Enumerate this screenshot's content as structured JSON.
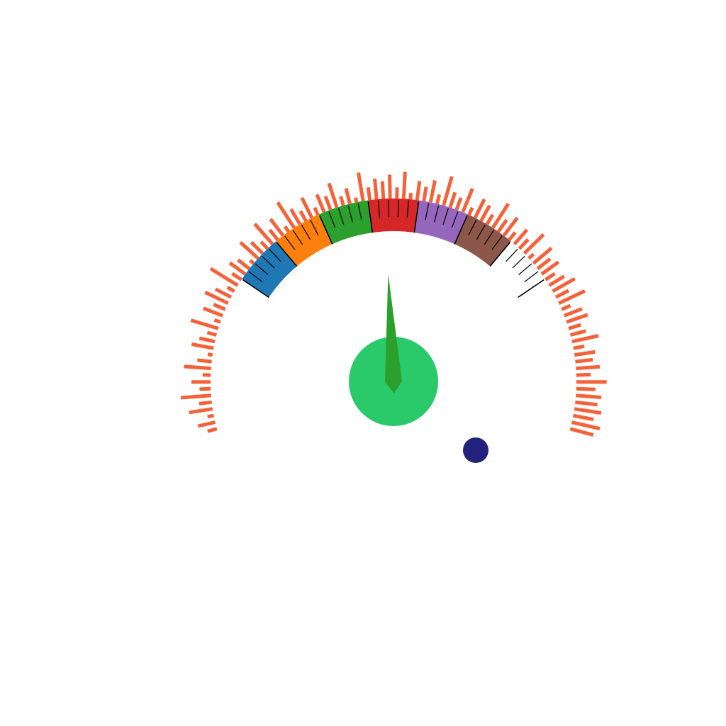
{
  "chart_data": {
    "type": "gauge",
    "title": "",
    "needle_value": 0.443,
    "bands": [
      {
        "from": 0.0,
        "to": 0.133,
        "color": "#1f77b4"
      },
      {
        "from": 0.133,
        "to": 0.266,
        "color": "#ff7f0e"
      },
      {
        "from": 0.266,
        "to": 0.4,
        "color": "#2ca02c"
      },
      {
        "from": 0.4,
        "to": 0.533,
        "color": "#d62728"
      },
      {
        "from": 0.533,
        "to": 0.666,
        "color": "#9467bd"
      },
      {
        "from": 0.666,
        "to": 0.8,
        "color": "#8c564b"
      },
      {
        "from": 0.8,
        "to": 0.933,
        "color": "#ffffff"
      }
    ],
    "radial_bars": {
      "color": "#f4623a",
      "values": [
        0.3,
        0.55,
        0.2,
        0.75,
        0.4,
        0.95,
        0.35,
        0.6,
        0.25,
        0.85,
        0.45,
        0.15,
        0.7,
        0.5,
        0.3,
        0.9,
        0.2,
        0.65,
        0.4,
        0.8,
        0.55,
        0.25,
        1.0,
        0.35,
        0.6,
        0.45,
        0.15,
        0.75,
        0.5,
        0.3,
        0.85,
        0.4,
        0.65,
        0.2,
        0.95,
        0.55,
        0.35,
        0.7,
        0.25,
        0.6,
        0.45,
        0.8,
        0.3,
        0.5,
        0.15,
        0.9,
        0.4,
        0.65,
        0.55,
        0.75,
        0.35,
        0.85,
        0.2,
        0.6,
        0.45,
        0.7,
        0.3,
        0.95,
        0.5,
        0.4,
        0.8,
        0.25,
        0.65,
        0.55,
        0.35,
        0.9,
        0.45,
        0.7,
        0.3,
        0.6,
        0.4,
        0.85,
        0.2,
        0.75,
        0.5,
        0.65,
        0.35,
        0.55,
        0.8,
        0.45,
        0.9,
        0.3,
        0.6,
        0.7,
        0.4,
        0.5,
        0.85,
        0.35,
        0.65,
        0.55,
        0.75,
        0.45,
        0.95,
        0.6,
        0.8,
        0.7,
        0.85,
        0.65,
        0.9,
        0.75
      ]
    },
    "colors": {
      "hub": "#2aca6a",
      "needle": "#2ca02c",
      "marker": "#23237e",
      "tick": "#000000"
    }
  }
}
